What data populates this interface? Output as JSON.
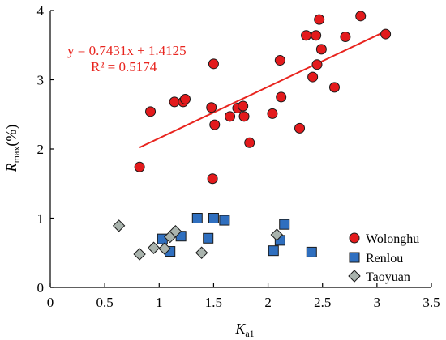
{
  "chart_data": {
    "type": "scatter",
    "xlabel": {
      "main": "K",
      "sub": "a1"
    },
    "ylabel": {
      "main": "R",
      "sub": "max",
      "suffix": "(%)"
    },
    "xlim": [
      0,
      3.5
    ],
    "ylim": [
      0,
      4
    ],
    "xticks": [
      0,
      0.5,
      1,
      1.5,
      2,
      2.5,
      3,
      3.5
    ],
    "yticks": [
      0,
      1,
      2,
      3,
      4
    ],
    "grid": false,
    "legend_position": "bottom-right",
    "colors": {
      "Wolonghu": "#e31a1c",
      "Renlou": "#2f6fbf",
      "Taoyuan": "#a9b3ad",
      "trendline": "#e8241e"
    },
    "series": [
      {
        "name": "Wolonghu",
        "marker": "circle",
        "points": [
          [
            0.82,
            1.74
          ],
          [
            0.92,
            2.54
          ],
          [
            1.14,
            2.68
          ],
          [
            1.22,
            2.68
          ],
          [
            1.24,
            2.72
          ],
          [
            1.48,
            2.6
          ],
          [
            1.5,
            3.23
          ],
          [
            1.51,
            2.35
          ],
          [
            1.65,
            2.47
          ],
          [
            1.72,
            2.59
          ],
          [
            1.77,
            2.62
          ],
          [
            1.78,
            2.47
          ],
          [
            1.83,
            2.09
          ],
          [
            2.04,
            2.51
          ],
          [
            2.11,
            3.28
          ],
          [
            2.12,
            2.75
          ],
          [
            2.29,
            2.3
          ],
          [
            2.35,
            3.64
          ],
          [
            2.41,
            3.04
          ],
          [
            2.44,
            3.64
          ],
          [
            2.45,
            3.22
          ],
          [
            2.47,
            3.87
          ],
          [
            2.49,
            3.44
          ],
          [
            2.61,
            2.89
          ],
          [
            2.71,
            3.62
          ],
          [
            2.85,
            3.92
          ],
          [
            3.08,
            3.66
          ],
          [
            1.49,
            1.57
          ]
        ]
      },
      {
        "name": "Renlou",
        "marker": "square",
        "points": [
          [
            1.03,
            0.7
          ],
          [
            1.1,
            0.52
          ],
          [
            1.2,
            0.74
          ],
          [
            1.35,
            1.0
          ],
          [
            1.45,
            0.71
          ],
          [
            1.5,
            1.0
          ],
          [
            1.6,
            0.97
          ],
          [
            2.05,
            0.53
          ],
          [
            2.11,
            0.68
          ],
          [
            2.15,
            0.91
          ],
          [
            2.4,
            0.51
          ]
        ]
      },
      {
        "name": "Taoyuan",
        "marker": "diamond",
        "points": [
          [
            0.63,
            0.89
          ],
          [
            0.82,
            0.48
          ],
          [
            0.95,
            0.57
          ],
          [
            1.05,
            0.56
          ],
          [
            1.1,
            0.73
          ],
          [
            1.15,
            0.81
          ],
          [
            1.39,
            0.5
          ],
          [
            2.08,
            0.76
          ]
        ]
      }
    ],
    "trendline": {
      "slope": 0.7431,
      "intercept": 1.4125,
      "x_range": [
        0.82,
        3.08
      ],
      "equation": "y = 0.7431x + 1.4125",
      "r_squared": "R² = 0.5174"
    }
  }
}
